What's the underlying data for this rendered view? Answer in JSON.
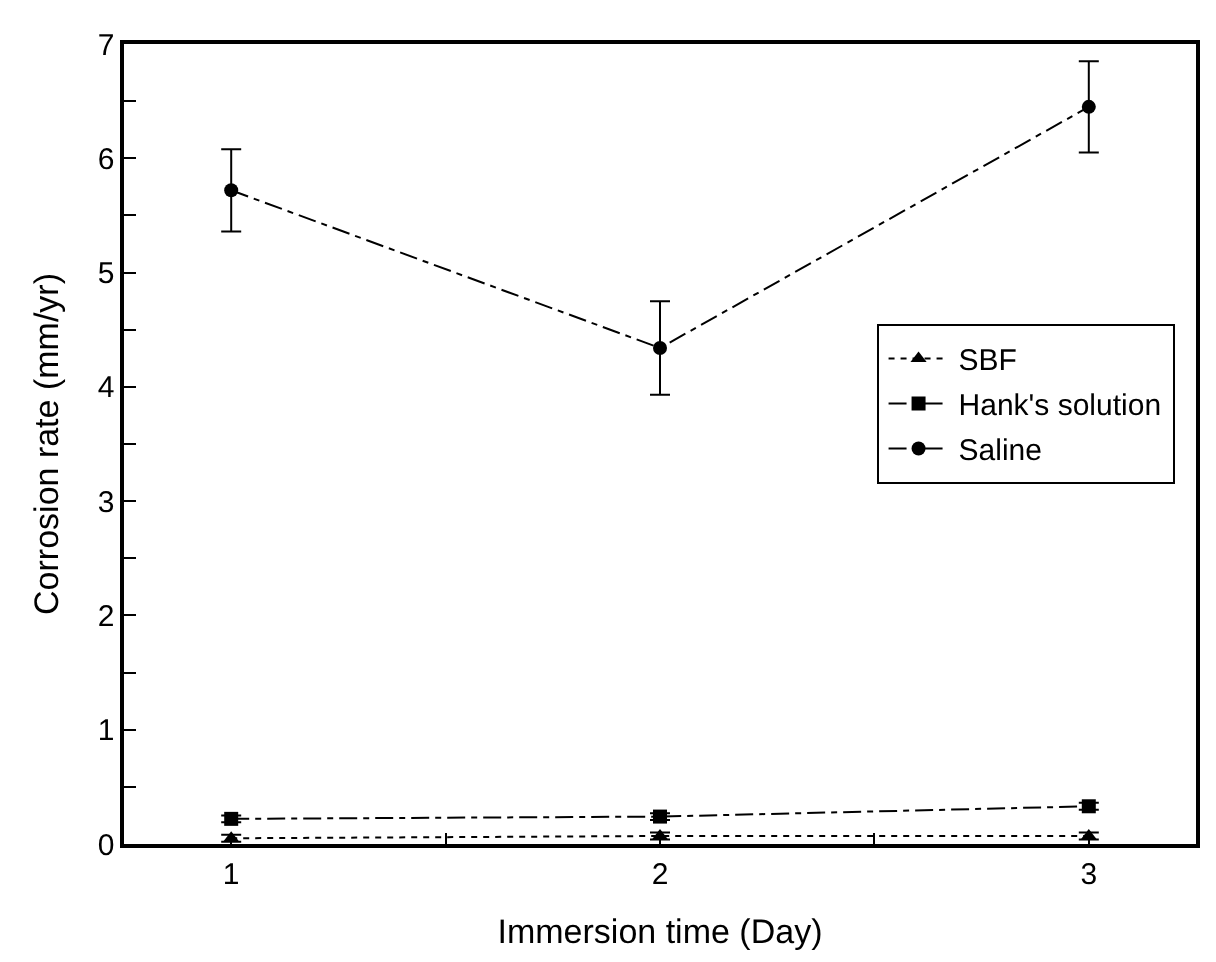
{
  "chart_data": {
    "type": "line",
    "xlabel": "Immersion time (Day)",
    "ylabel": "Corrosion rate (mm/yr)",
    "x": [
      1,
      2,
      3
    ],
    "series": [
      {
        "name": "SBF",
        "color": "#000000",
        "marker": "triangle",
        "line_style": "dotted",
        "values": [
          0.05,
          0.07,
          0.07
        ],
        "errors": [
          0.03,
          0.03,
          0.03
        ]
      },
      {
        "name": "Hank's solution",
        "color": "#000000",
        "marker": "square",
        "line_style": "dashed",
        "values": [
          0.22,
          0.24,
          0.33
        ],
        "errors": [
          0.03,
          0.03,
          0.03
        ]
      },
      {
        "name": "Saline",
        "color": "#000000",
        "marker": "circle",
        "line_style": "dashed",
        "values": [
          5.72,
          4.34,
          6.45
        ],
        "errors": [
          0.36,
          0.41,
          0.4
        ]
      }
    ],
    "xlim": [
      0.75,
      3.25
    ],
    "xticks": [
      1,
      {
        "value": 1.5,
        "label": null
      },
      2,
      {
        "value": 2.5,
        "label": null
      },
      3
    ],
    "ylim": [
      0,
      7
    ],
    "yticks": [
      0,
      {
        "value": 0.5,
        "label": null
      },
      1,
      {
        "value": 1.5,
        "label": null
      },
      2,
      {
        "value": 2.5,
        "label": null
      },
      3,
      {
        "value": 3.5,
        "label": null
      },
      4,
      {
        "value": 4.5,
        "label": null
      },
      5,
      {
        "value": 5.5,
        "label": null
      },
      6,
      {
        "value": 6.5,
        "label": null
      },
      7
    ],
    "legend": "right"
  }
}
